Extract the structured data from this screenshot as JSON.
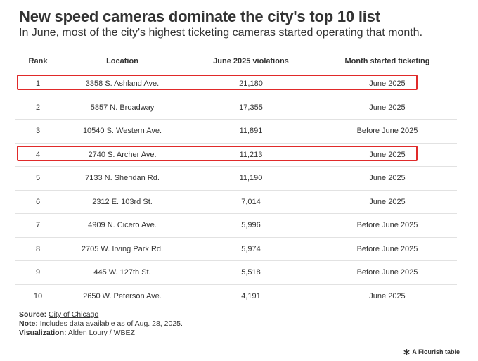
{
  "chart_data": {
    "type": "table",
    "title": "New speed cameras dominate the city's top 10 list",
    "subtitle": "In June, most of the city's highest ticketing cameras started operating that month.",
    "columns": [
      "Rank",
      "Location",
      "June 2025 violations",
      "Month started ticketing"
    ],
    "rows": [
      [
        "1",
        "3358 S. Ashland Ave.",
        "21,180",
        "June 2025"
      ],
      [
        "2",
        "5857 N. Broadway",
        "17,355",
        "June 2025"
      ],
      [
        "3",
        "10540 S. Western Ave.",
        "11,891",
        "Before June 2025"
      ],
      [
        "4",
        "2740 S. Archer Ave.",
        "11,213",
        "June 2025"
      ],
      [
        "5",
        "7133 N. Sheridan Rd.",
        "11,190",
        "June 2025"
      ],
      [
        "6",
        "2312 E. 103rd St.",
        "7,014",
        "June 2025"
      ],
      [
        "7",
        "4909 N. Cicero Ave.",
        "5,996",
        "Before June 2025"
      ],
      [
        "8",
        "2705 W. Irving Park Rd.",
        "5,974",
        "Before June 2025"
      ],
      [
        "9",
        "445 W. 127th St.",
        "5,518",
        "Before June 2025"
      ],
      [
        "10",
        "2650 W. Peterson Ave.",
        "4,191",
        "June 2025"
      ]
    ],
    "highlighted_rows": [
      1,
      4
    ],
    "highlight_color": "#e02a2a"
  },
  "footer": {
    "source_label": "Source:",
    "source_link": "City of Chicago",
    "note_label": "Note:",
    "note_text": "Includes data available as of Aug. 28, 2025.",
    "viz_label": "Visualization:",
    "viz_text": "Alden Loury / WBEZ"
  },
  "branding": {
    "icon": "flourish-asterisk-icon",
    "text": "A Flourish table"
  }
}
